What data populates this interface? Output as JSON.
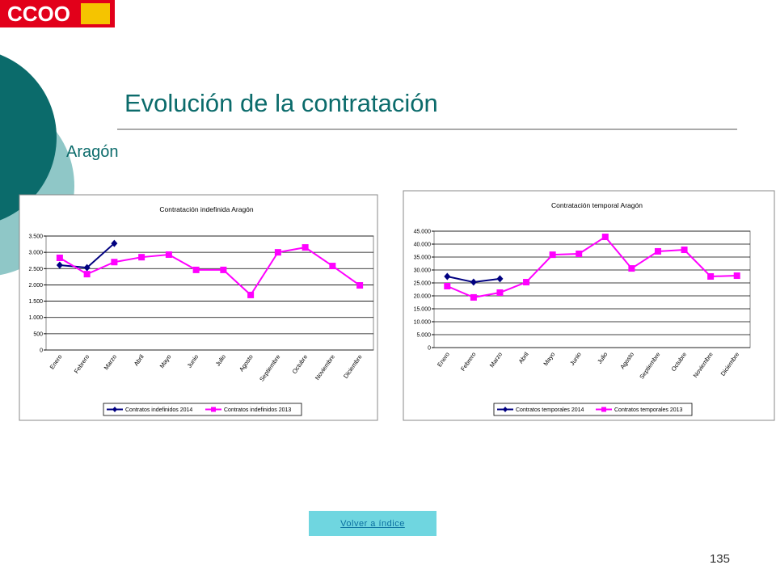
{
  "logo": "CCOO",
  "title": "Evolución de la contratación",
  "subtitle": "Aragón",
  "button": "Volver a índice",
  "page_number": "135",
  "chart_data": [
    {
      "type": "line",
      "title": "Contratación indefinida Aragón",
      "categories": [
        "Enero",
        "Febrero",
        "Marzo",
        "Abril",
        "Mayo",
        "Junio",
        "Julio",
        "Agosto",
        "Septiembre",
        "Octubre",
        "Noviembre",
        "Diciembre"
      ],
      "series": [
        {
          "name": "Contratos indefinidos 2014",
          "color": "#000080",
          "marker": "diamond",
          "values": [
            2605,
            2530,
            3275,
            null,
            null,
            null,
            null,
            null,
            null,
            null,
            null,
            null
          ]
        },
        {
          "name": "Contratos indefinidos 2013",
          "color": "#ff00ff",
          "marker": "square",
          "values": [
            2830,
            2330,
            2700,
            2850,
            2930,
            2460,
            2460,
            1690,
            3000,
            3150,
            2580,
            1985
          ]
        }
      ],
      "ylim": [
        0,
        3500
      ],
      "yticks": [
        0,
        500,
        {
          "value": 1000,
          "label": "1.000"
        },
        {
          "value": 1500,
          "label": "1.500"
        },
        {
          "value": 2000,
          "label": "2.000"
        },
        {
          "value": 2500,
          "label": "2.500"
        },
        {
          "value": 3000,
          "label": "3.000"
        },
        {
          "value": 3500,
          "label": "3.500"
        }
      ],
      "grid": true,
      "legend": "bottom"
    },
    {
      "type": "line",
      "title": "Contratación temporal Aragón",
      "categories": [
        "Enero",
        "Febrero",
        "Marzo",
        "Abril",
        "Mayo",
        "Junio",
        "Julio",
        "Agosto",
        "Septiembre",
        "Octubre",
        "Noviembre",
        "Diciembre"
      ],
      "series": [
        {
          "name": "Contratos temporales 2014",
          "color": "#000080",
          "marker": "diamond",
          "values": [
            27500,
            25300,
            26600,
            null,
            null,
            null,
            null,
            null,
            null,
            null,
            null,
            null
          ]
        },
        {
          "name": "Contratos temporales 2013",
          "color": "#ff00ff",
          "marker": "square",
          "values": [
            23750,
            19400,
            21250,
            25300,
            35900,
            36250,
            42800,
            30600,
            37200,
            37800,
            27500,
            27800
          ]
        }
      ],
      "ylim": [
        0,
        45000
      ],
      "yticks": [
        0,
        {
          "value": 5000,
          "label": "5.000"
        },
        {
          "value": 10000,
          "label": "10.000"
        },
        {
          "value": 15000,
          "label": "15.000"
        },
        {
          "value": 20000,
          "label": "20.000"
        },
        {
          "value": 25000,
          "label": "25.000"
        },
        {
          "value": 30000,
          "label": "30.000"
        },
        {
          "value": 35000,
          "label": "35.000"
        },
        {
          "value": 40000,
          "label": "40.000"
        },
        {
          "value": 45000,
          "label": "45.000"
        }
      ],
      "grid": true,
      "legend": "bottom"
    }
  ]
}
